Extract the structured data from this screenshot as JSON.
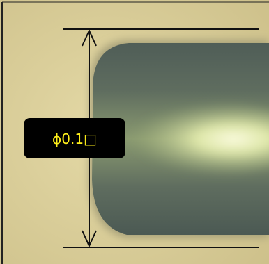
{
  "annotation": {
    "label": "ϕ0.1□"
  }
}
